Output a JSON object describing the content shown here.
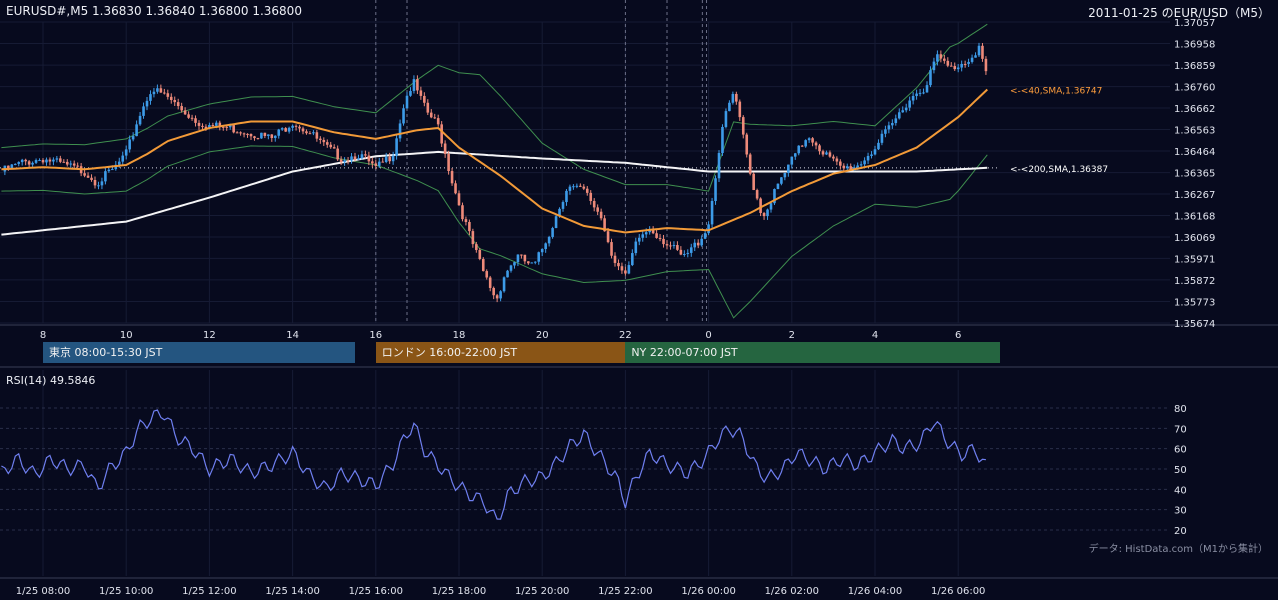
{
  "header": {
    "symbol_info": "EURUSD#,M5 1.36830 1.36840 1.36800 1.36800",
    "title": "2011-01-25 のEUR/USD（M5）"
  },
  "sessions": [
    {
      "label": "東京 08:00-15:30 JST",
      "color": "#245580"
    },
    {
      "label": "ロンドン 16:00-22:00 JST",
      "color": "#8a5516"
    },
    {
      "label": "NY 22:00-07:00 JST",
      "color": "#256540"
    }
  ],
  "rsi_label": "RSI(14) 49.5846",
  "credit": "データ: HistData.com（M1から集計）",
  "chart_data": {
    "type": "candlestick",
    "price_axis": {
      "ticks": [
        "1.37057",
        "1.36958",
        "1.36859",
        "1.36760",
        "1.36662",
        "1.36563",
        "1.36464",
        "1.36365",
        "1.36267",
        "1.36168",
        "1.36069",
        "1.35971",
        "1.35872",
        "1.35773",
        "1.35674"
      ],
      "range": [
        1.35674,
        1.37057
      ]
    },
    "hour_ticks": [
      "8",
      "10",
      "12",
      "14",
      "16",
      "18",
      "20",
      "22",
      "0",
      "2",
      "4",
      "6"
    ],
    "time_ticks": [
      "1/25 08:00",
      "1/25 10:00",
      "1/25 12:00",
      "1/25 14:00",
      "1/25 16:00",
      "1/25 18:00",
      "1/25 20:00",
      "1/25 22:00",
      "1/26 00:00",
      "1/26 02:00",
      "1/26 04:00",
      "1/26 06:00"
    ],
    "close_path": [
      [
        7.0,
        1.3637
      ],
      [
        7.5,
        1.3641
      ],
      [
        8.0,
        1.3643
      ],
      [
        8.5,
        1.364
      ],
      [
        9.0,
        1.3637
      ],
      [
        9.3,
        1.3632
      ],
      [
        9.7,
        1.3638
      ],
      [
        10.0,
        1.3645
      ],
      [
        10.3,
        1.3662
      ],
      [
        10.6,
        1.3675
      ],
      [
        11.0,
        1.3671
      ],
      [
        11.3,
        1.3666
      ],
      [
        11.7,
        1.366
      ],
      [
        12.0,
        1.3658
      ],
      [
        12.5,
        1.3657
      ],
      [
        13.0,
        1.3655
      ],
      [
        13.5,
        1.3652
      ],
      [
        14.0,
        1.366
      ],
      [
        14.4,
        1.3655
      ],
      [
        14.8,
        1.3648
      ],
      [
        15.2,
        1.3643
      ],
      [
        15.6,
        1.3645
      ],
      [
        16.0,
        1.3638
      ],
      [
        16.4,
        1.3645
      ],
      [
        16.7,
        1.367
      ],
      [
        16.9,
        1.3678
      ],
      [
        17.2,
        1.3665
      ],
      [
        17.5,
        1.3658
      ],
      [
        17.8,
        1.3635
      ],
      [
        18.0,
        1.3622
      ],
      [
        18.3,
        1.3605
      ],
      [
        18.6,
        1.359
      ],
      [
        18.9,
        1.3578
      ],
      [
        19.1,
        1.359
      ],
      [
        19.4,
        1.3598
      ],
      [
        19.8,
        1.3593
      ],
      [
        20.2,
        1.361
      ],
      [
        20.6,
        1.363
      ],
      [
        21.0,
        1.3628
      ],
      [
        21.4,
        1.3617
      ],
      [
        21.7,
        1.3598
      ],
      [
        22.0,
        1.3588
      ],
      [
        22.3,
        1.3606
      ],
      [
        22.6,
        1.3611
      ],
      [
        23.0,
        1.3604
      ],
      [
        23.4,
        1.3597
      ],
      [
        23.8,
        1.3606
      ],
      [
        24.0,
        1.3613
      ],
      [
        24.2,
        1.364
      ],
      [
        24.4,
        1.3663
      ],
      [
        24.6,
        1.3673
      ],
      [
        24.8,
        1.3656
      ],
      [
        25.0,
        1.3636
      ],
      [
        25.3,
        1.3616
      ],
      [
        25.6,
        1.3628
      ],
      [
        26.0,
        1.3642
      ],
      [
        26.4,
        1.3654
      ],
      [
        26.8,
        1.3645
      ],
      [
        27.2,
        1.3638
      ],
      [
        27.6,
        1.364
      ],
      [
        28.0,
        1.3648
      ],
      [
        28.4,
        1.3658
      ],
      [
        28.8,
        1.367
      ],
      [
        29.2,
        1.3676
      ],
      [
        29.5,
        1.369
      ],
      [
        29.8,
        1.3684
      ],
      [
        30.2,
        1.3688
      ],
      [
        30.5,
        1.3694
      ],
      [
        30.7,
        1.368
      ]
    ],
    "sma40": [
      [
        7.0,
        1.3638
      ],
      [
        8.0,
        1.3639
      ],
      [
        9.0,
        1.3638
      ],
      [
        10.0,
        1.364
      ],
      [
        10.5,
        1.3645
      ],
      [
        11.0,
        1.3651
      ],
      [
        12.0,
        1.3657
      ],
      [
        13.0,
        1.366
      ],
      [
        14.0,
        1.366
      ],
      [
        15.0,
        1.3655
      ],
      [
        16.0,
        1.3652
      ],
      [
        17.0,
        1.3656
      ],
      [
        17.5,
        1.3657
      ],
      [
        18.0,
        1.3648
      ],
      [
        19.0,
        1.3635
      ],
      [
        20.0,
        1.362
      ],
      [
        21.0,
        1.3612
      ],
      [
        22.0,
        1.3609
      ],
      [
        23.0,
        1.3611
      ],
      [
        24.0,
        1.361
      ],
      [
        25.0,
        1.3618
      ],
      [
        26.0,
        1.3628
      ],
      [
        27.0,
        1.3636
      ],
      [
        28.0,
        1.364
      ],
      [
        29.0,
        1.3648
      ],
      [
        30.0,
        1.3662
      ],
      [
        30.7,
        1.36747
      ]
    ],
    "sma200": [
      [
        7.0,
        1.3608
      ],
      [
        10.0,
        1.3614
      ],
      [
        12.0,
        1.3625
      ],
      [
        14.0,
        1.3637
      ],
      [
        16.0,
        1.3644
      ],
      [
        17.5,
        1.3646
      ],
      [
        20.0,
        1.3643
      ],
      [
        22.0,
        1.3641
      ],
      [
        24.0,
        1.3637
      ],
      [
        25.0,
        1.3637
      ],
      [
        27.0,
        1.3637
      ],
      [
        29.0,
        1.3637
      ],
      [
        30.7,
        1.36387
      ]
    ],
    "bollinger_offset": [
      [
        7.0,
        0.001
      ],
      [
        10.0,
        0.0012
      ],
      [
        12.0,
        0.0011
      ],
      [
        16.0,
        0.0012
      ],
      [
        18.5,
        0.004
      ],
      [
        20.0,
        0.003
      ],
      [
        22.0,
        0.0022
      ],
      [
        24.0,
        0.0018
      ],
      [
        24.6,
        0.0045
      ],
      [
        26.0,
        0.003
      ],
      [
        28.0,
        0.0018
      ],
      [
        29.8,
        0.0035
      ],
      [
        30.7,
        0.003
      ]
    ],
    "annotations": [
      {
        "text": "<-<40,SMA,1.36747",
        "price": 1.36747,
        "color": "#ff9e3d"
      },
      {
        "text": "<-<200,SMA,1.36387",
        "price": 1.36387,
        "color": "#ffffff"
      }
    ],
    "reference_price": 1.36387,
    "session_marks": [
      16.0,
      16.75,
      22.0,
      23.0,
      23.85,
      23.95
    ],
    "rsi": {
      "ticks": [
        "80",
        "70",
        "60",
        "50",
        "40",
        "30",
        "20"
      ],
      "range": [
        20,
        80
      ],
      "path": [
        [
          7.0,
          48
        ],
        [
          7.4,
          55
        ],
        [
          7.8,
          47
        ],
        [
          8.2,
          55
        ],
        [
          8.6,
          50
        ],
        [
          9.0,
          52
        ],
        [
          9.3,
          40
        ],
        [
          9.6,
          50
        ],
        [
          10.0,
          58
        ],
        [
          10.3,
          70
        ],
        [
          10.6,
          75
        ],
        [
          10.9,
          78
        ],
        [
          11.2,
          66
        ],
        [
          11.6,
          60
        ],
        [
          12.0,
          50
        ],
        [
          12.5,
          55
        ],
        [
          13.0,
          48
        ],
        [
          13.5,
          52
        ],
        [
          14.0,
          58
        ],
        [
          14.4,
          47
        ],
        [
          14.8,
          40
        ],
        [
          15.2,
          48
        ],
        [
          15.6,
          45
        ],
        [
          16.0,
          42
        ],
        [
          16.4,
          52
        ],
        [
          16.7,
          66
        ],
        [
          16.9,
          72
        ],
        [
          17.2,
          58
        ],
        [
          17.5,
          52
        ],
        [
          17.8,
          45
        ],
        [
          18.2,
          38
        ],
        [
          18.6,
          34
        ],
        [
          18.9,
          24
        ],
        [
          19.2,
          38
        ],
        [
          19.6,
          44
        ],
        [
          20.0,
          46
        ],
        [
          20.3,
          52
        ],
        [
          20.7,
          62
        ],
        [
          21.0,
          67
        ],
        [
          21.4,
          56
        ],
        [
          21.8,
          45
        ],
        [
          22.0,
          34
        ],
        [
          22.3,
          48
        ],
        [
          22.6,
          58
        ],
        [
          23.0,
          52
        ],
        [
          23.5,
          48
        ],
        [
          23.9,
          55
        ],
        [
          24.2,
          64
        ],
        [
          24.5,
          70
        ],
        [
          24.8,
          66
        ],
        [
          25.1,
          52
        ],
        [
          25.4,
          45
        ],
        [
          25.8,
          50
        ],
        [
          26.1,
          58
        ],
        [
          26.4,
          55
        ],
        [
          26.8,
          50
        ],
        [
          27.2,
          55
        ],
        [
          27.6,
          52
        ],
        [
          28.0,
          58
        ],
        [
          28.4,
          64
        ],
        [
          28.7,
          60
        ],
        [
          29.1,
          63
        ],
        [
          29.4,
          74
        ],
        [
          29.8,
          62
        ],
        [
          30.1,
          57
        ],
        [
          30.4,
          60
        ],
        [
          30.7,
          50
        ]
      ]
    }
  }
}
